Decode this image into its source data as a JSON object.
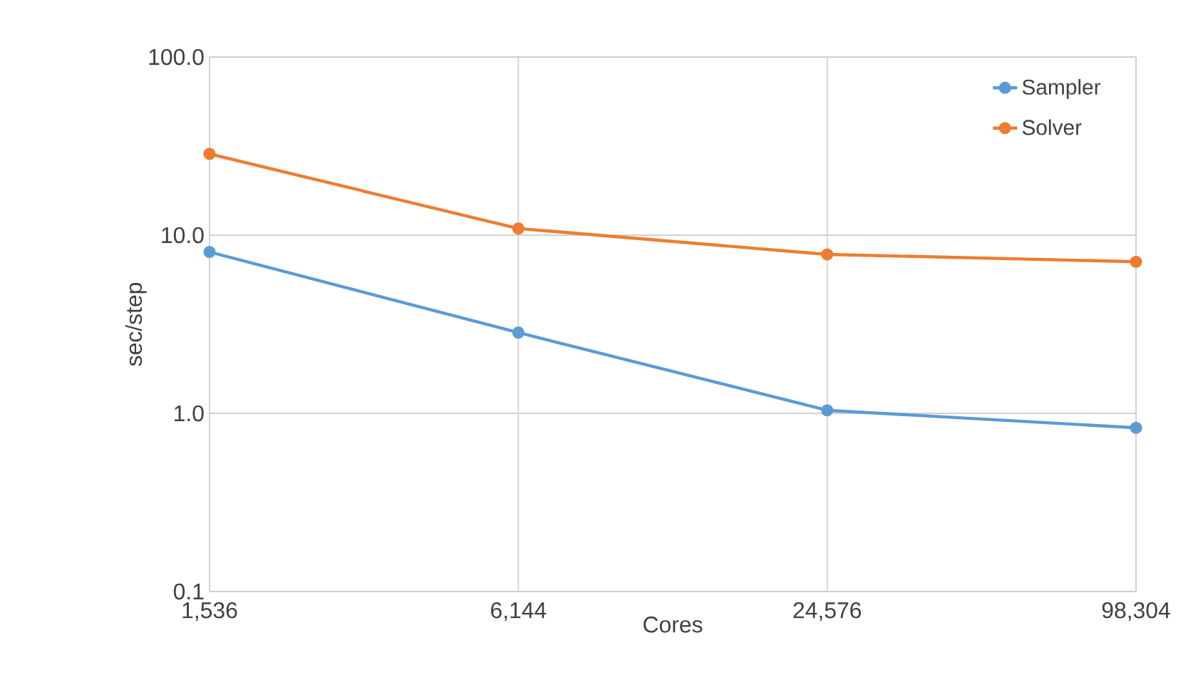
{
  "chart_data": {
    "type": "line",
    "xlabel": "Cores",
    "ylabel": "sec/step",
    "categories": [
      "1,536",
      "6,144",
      "24,576",
      "98,304"
    ],
    "series": [
      {
        "name": "Sampler",
        "color": "#5b9bd5",
        "values": [
          8.05,
          2.84,
          1.04,
          0.83
        ]
      },
      {
        "name": "Solver",
        "color": "#ed7d31",
        "values": [
          28.6,
          10.9,
          7.8,
          7.1
        ]
      }
    ],
    "log": "y",
    "ylim": [
      0.1,
      100
    ],
    "yticks": [
      {
        "value": 0.1,
        "label": "0.1"
      },
      {
        "value": 1,
        "label": "1.0"
      },
      {
        "value": 10,
        "label": "10.0"
      },
      {
        "value": 100,
        "label": "100.0"
      }
    ],
    "grid": true,
    "legend": "top right",
    "marker": "circle",
    "line_style": "solid"
  }
}
